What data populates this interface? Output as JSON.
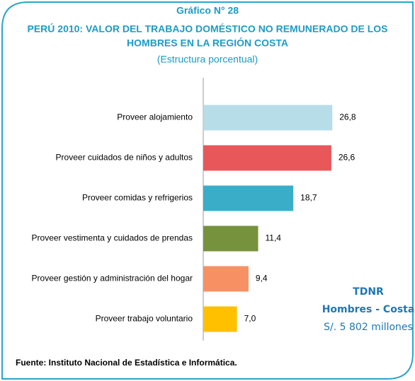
{
  "chart_data": {
    "type": "bar",
    "orientation": "horizontal",
    "title_lines": [
      "Gráfico N° 28",
      "PERÚ 2010: VALOR DEL TRABAJO DOMÉSTICO NO REMUNERADO DE LOS",
      "HOMBRES EN LA REGIÓN COSTA"
    ],
    "subtitle": "(Estructura porcentual)",
    "categories": [
      "Proveer alojamiento",
      "Proveer cuidados de niños y adultos",
      "Proveer comidas y refrigerios",
      "Proveer vestimenta y cuidados de prendas",
      "Proveer gestión y administración del hogar",
      "Proveer trabajo voluntario"
    ],
    "values": [
      26.8,
      26.6,
      18.7,
      11.4,
      9.4,
      7.0
    ],
    "value_labels": [
      "26,8",
      "26,6",
      "18,7",
      "11,4",
      "9,4",
      "7,0"
    ],
    "colors": [
      "#b7dde8",
      "#e8575a",
      "#3aaec8",
      "#77923c",
      "#f79164",
      "#ffc000"
    ],
    "annotation_lines": [
      "TDNR",
      "Hombres - Costa",
      "S/. 5 802 millones"
    ],
    "source": "Fuente: Instituto Nacional de Estadística e Informática."
  }
}
